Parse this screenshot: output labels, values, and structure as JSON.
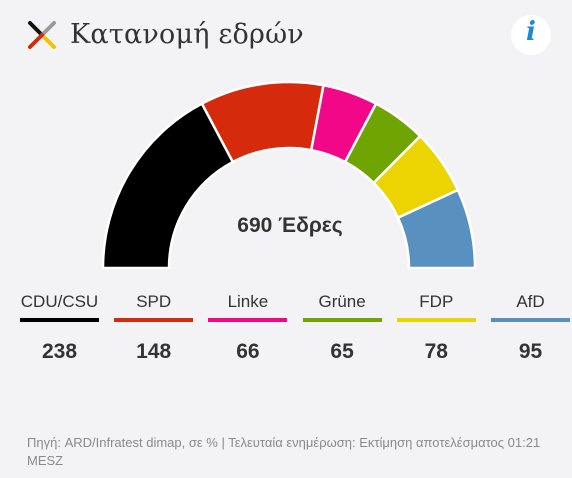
{
  "header": {
    "title": "Κατανομή εδρών",
    "info_label": "i"
  },
  "chart_data": {
    "type": "parliament-semicircle",
    "total_label": "690 Έδρες",
    "total": 690,
    "series": [
      {
        "name": "CDU/CSU",
        "value": 238,
        "color": "#000000"
      },
      {
        "name": "SPD",
        "value": 148,
        "color": "#d52b0c"
      },
      {
        "name": "Linke",
        "value": 66,
        "color": "#f20789"
      },
      {
        "name": "Grüne",
        "value": 65,
        "color": "#70a403"
      },
      {
        "name": "FDP",
        "value": 78,
        "color": "#ebd401"
      },
      {
        "name": "AfD",
        "value": 95,
        "color": "#5890bf"
      }
    ]
  },
  "footer": {
    "source": "Πηγή: ARD/Infratest dimap, σε % | Τελευταία ενημέρωση: Εκτίμηση αποτελέσματος 01:21 MESZ"
  }
}
